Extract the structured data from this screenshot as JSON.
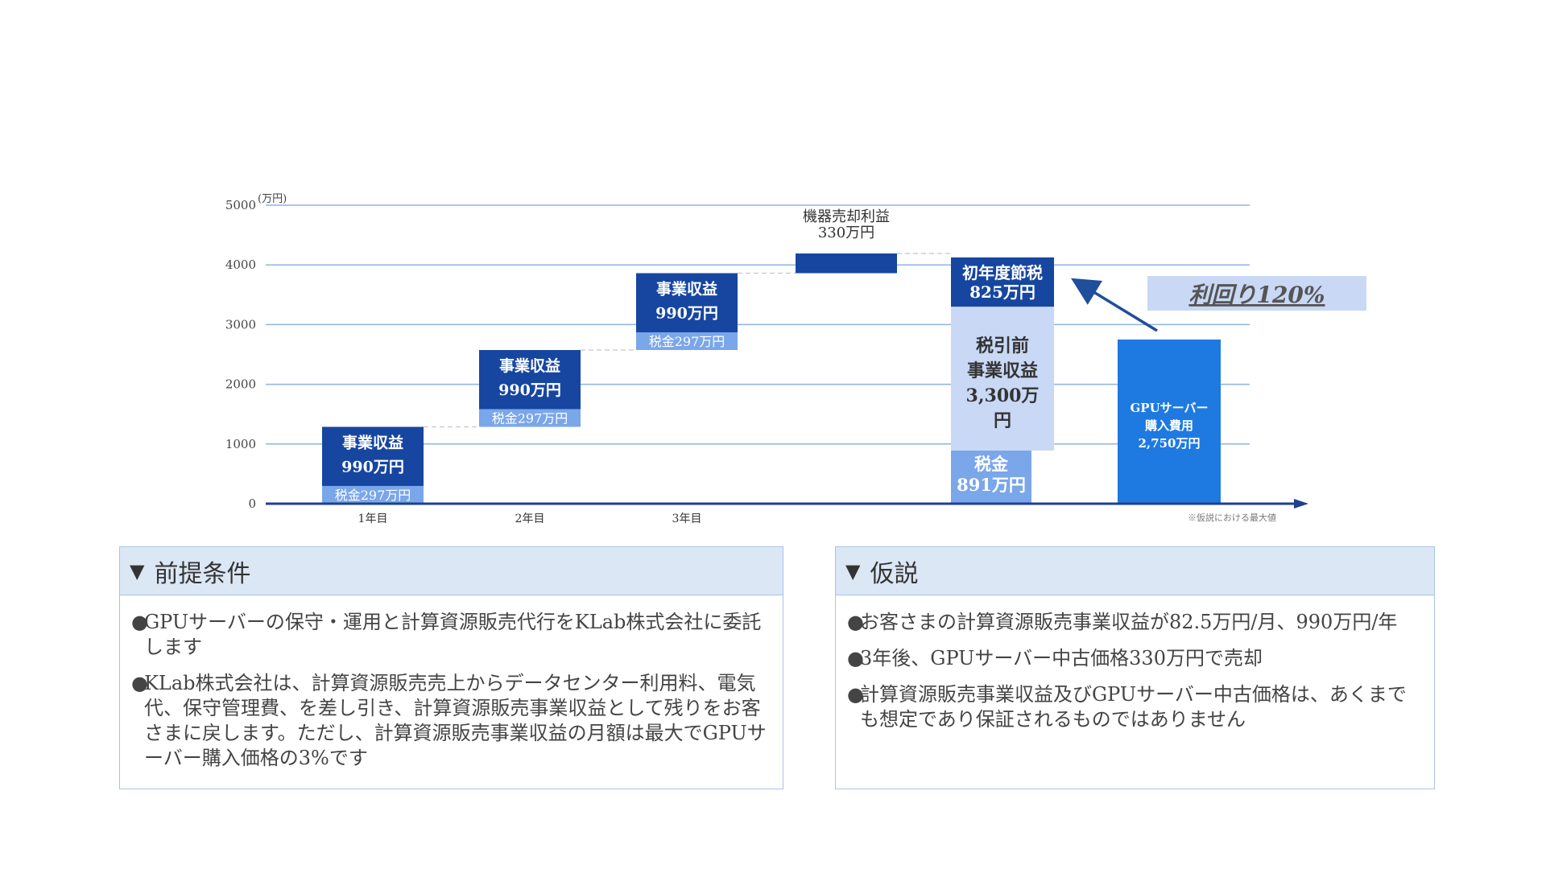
{
  "chart_data": {
    "type": "waterfall",
    "unit_label": "(万円)",
    "ylim": [
      0,
      5000
    ],
    "y_ticks": [
      0,
      1000,
      2000,
      3000,
      4000,
      5000
    ],
    "categories": [
      "1年目",
      "2年目",
      "3年目"
    ],
    "footnote": "※仮説における最大値",
    "bars": [
      {
        "id": "y1-tax",
        "base": 0,
        "value": 297,
        "color": "#7aa6ea",
        "label": "税金297万円"
      },
      {
        "id": "y1-rev",
        "base": 297,
        "value": 990,
        "color": "#1646a0",
        "label": "事業収益\n990万円"
      },
      {
        "id": "y2-tax",
        "base": 1287,
        "value": 297,
        "color": "#7aa6ea",
        "label": "税金297万円"
      },
      {
        "id": "y2-rev",
        "base": 1584,
        "value": 990,
        "color": "#1646a0",
        "label": "事業収益\n990万円"
      },
      {
        "id": "y3-tax",
        "base": 2574,
        "value": 297,
        "color": "#7aa6ea",
        "label": "税金297万円"
      },
      {
        "id": "y3-rev",
        "base": 2871,
        "value": 990,
        "color": "#1646a0",
        "label": "事業収益\n990万円"
      },
      {
        "id": "sale",
        "base": 3861,
        "value": 330,
        "color": "#1646a0",
        "label": "機器売却利益\n330万円"
      },
      {
        "id": "total-tax",
        "base": 0,
        "value": 891,
        "color": "#7aa6ea",
        "label": "税金\n891万円"
      },
      {
        "id": "total-pretax",
        "base": 891,
        "value": 2409,
        "color": "#c8d8f5",
        "label": "税引前\n事業収益\n3,300万\n円"
      },
      {
        "id": "total-taxsave",
        "base": 3300,
        "value": 825,
        "color": "#1646a0",
        "label": "初年度節税\n825万円"
      },
      {
        "id": "gpu-cost",
        "base": 0,
        "value": 2750,
        "color": "#1e7ae0",
        "label": "GPUサーバー\n購入費用\n2,750万円"
      }
    ],
    "yield_label": "利回り120%",
    "colors": {
      "tax": "#7aa6ea",
      "revenue": "#1646a0",
      "pretax": "#c8d8f5",
      "gpu": "#1e7ae0",
      "grid": "#8fb3e3",
      "axis": "#1f3f8f",
      "arrow": "#1f4e9c"
    }
  },
  "panels": {
    "left": {
      "title": "前提条件",
      "bullets": [
        "GPUサーバーの保守・運用と計算資源販売代行をKLab株式会社に委託します",
        "KLab株式会社は、計算資源販売売上からデータセンター利用料、電気代、保守管理費、を差し引き、計算資源販売事業収益として残りをお客さまに戻します。ただし、計算資源販売事業収益の月額は最大でGPUサーバー購入価格の3%です"
      ]
    },
    "right": {
      "title": "仮説",
      "bullets": [
        "お客さまの計算資源販売事業収益が82.5万円/月、990万円/年",
        "3年後、GPUサーバー中古価格330万円で売却",
        "計算資源販売事業収益及びGPUサーバー中古価格は、あくまでも想定であり保証されるものではありません"
      ]
    }
  }
}
